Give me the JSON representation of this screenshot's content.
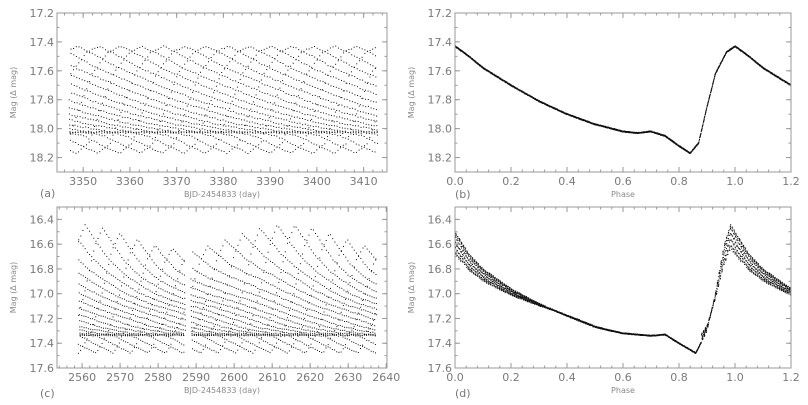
{
  "chart_data": [
    {
      "id": "a",
      "type": "scatter",
      "panel_label": "(a)",
      "xlabel": "BJD-2454833 (day)",
      "ylabel": "Mag (Δ mag)",
      "xlim": [
        3344.4,
        3415
      ],
      "ylim": [
        17.2,
        18.3
      ],
      "y_inverted": true,
      "xticks": [
        3350,
        3360,
        3370,
        3380,
        3390,
        3400,
        3410
      ],
      "yticks": [
        17.2,
        17.4,
        17.6,
        17.8,
        18.0,
        18.2
      ],
      "time_range": [
        3347,
        3413
      ],
      "light_curve_template": [
        [
          0,
          17.43
        ],
        [
          0.05,
          17.5
        ],
        [
          0.1,
          17.58
        ],
        [
          0.2,
          17.7
        ],
        [
          0.3,
          17.81
        ],
        [
          0.4,
          17.9
        ],
        [
          0.5,
          17.97
        ],
        [
          0.6,
          18.02
        ],
        [
          0.65,
          18.03
        ],
        [
          0.7,
          18.02
        ],
        [
          0.75,
          18.05
        ],
        [
          0.8,
          18.12
        ],
        [
          0.84,
          18.17
        ],
        [
          0.87,
          18.1
        ],
        [
          0.9,
          17.85
        ],
        [
          0.93,
          17.62
        ],
        [
          0.97,
          17.47
        ],
        [
          1.0,
          17.43
        ]
      ],
      "marker_color": "#111111"
    },
    {
      "id": "b",
      "type": "scatter",
      "panel_label": "(b)",
      "xlabel": "Phase",
      "ylabel": "Mag (Δ mag)",
      "xlim": [
        0.0,
        1.2
      ],
      "ylim": [
        17.2,
        18.3
      ],
      "y_inverted": true,
      "xticks": [
        0.0,
        0.2,
        0.4,
        0.6,
        0.8,
        1.0,
        1.2
      ],
      "yticks": [
        17.2,
        17.4,
        17.6,
        17.8,
        18.0,
        18.2
      ],
      "folded_from": "a",
      "marker_color": "#111111"
    },
    {
      "id": "c",
      "type": "scatter",
      "panel_label": "(c)",
      "xlabel": "BJD-2454833 (day)",
      "ylabel": "Mag (Δ mag)",
      "xlim": [
        2553.4,
        2640.2
      ],
      "ylim": [
        16.3,
        17.6
      ],
      "y_inverted": true,
      "xticks": [
        2560,
        2570,
        2580,
        2590,
        2600,
        2610,
        2620,
        2630,
        2640
      ],
      "yticks": [
        16.4,
        16.6,
        16.8,
        17.0,
        17.2,
        17.4,
        17.6
      ],
      "time_range": [
        2559,
        2637.5
      ],
      "data_gap": [
        2587.2,
        2588.6
      ],
      "light_curve_template": [
        [
          0,
          16.5
        ],
        [
          0.05,
          16.68
        ],
        [
          0.1,
          16.8
        ],
        [
          0.2,
          16.96
        ],
        [
          0.3,
          17.08
        ],
        [
          0.4,
          17.18
        ],
        [
          0.5,
          17.27
        ],
        [
          0.6,
          17.32
        ],
        [
          0.7,
          17.34
        ],
        [
          0.75,
          17.33
        ],
        [
          0.8,
          17.4
        ],
        [
          0.86,
          17.48
        ],
        [
          0.9,
          17.3
        ],
        [
          0.93,
          17.0
        ],
        [
          0.96,
          16.62
        ],
        [
          0.985,
          16.44
        ],
        [
          1.0,
          16.5
        ]
      ],
      "amplitude_modulation_range": [
        0.72,
        1.0
      ],
      "marker_color": "#111111"
    },
    {
      "id": "d",
      "type": "scatter",
      "panel_label": "(d)",
      "xlabel": "Phase",
      "ylabel": "Mag (Δ mag)",
      "xlim": [
        0.0,
        1.2
      ],
      "ylim": [
        16.3,
        17.6
      ],
      "y_inverted": true,
      "xticks": [
        0.0,
        0.2,
        0.4,
        0.6,
        0.8,
        1.0,
        1.2
      ],
      "yticks": [
        16.4,
        16.6,
        16.8,
        17.0,
        17.2,
        17.4,
        17.6
      ],
      "folded_from": "c",
      "marker_color": "#111111"
    }
  ]
}
